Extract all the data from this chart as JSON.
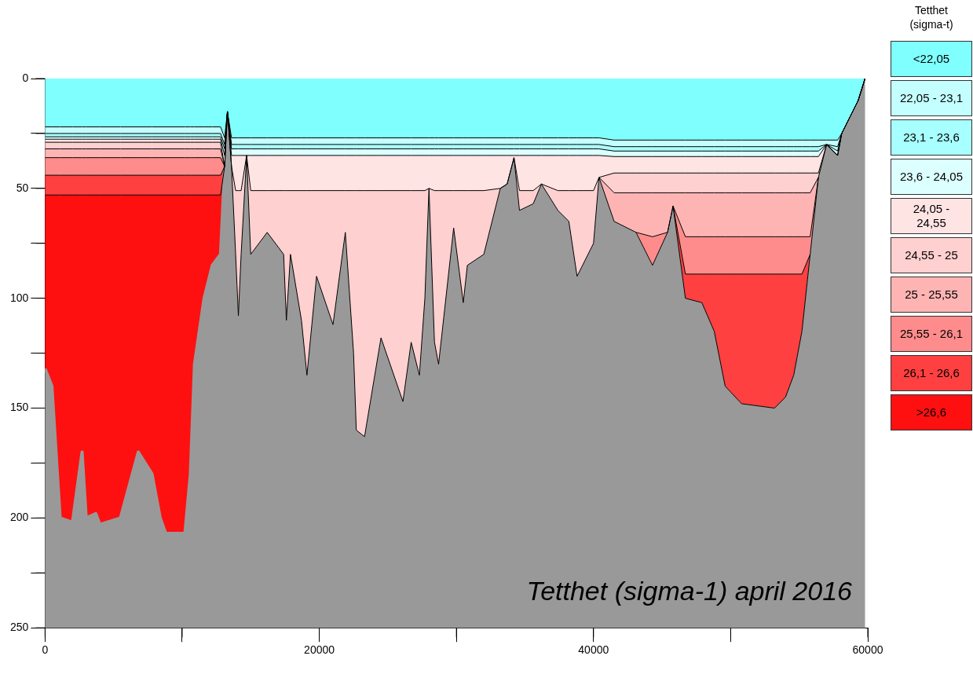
{
  "chart_data": {
    "type": "area",
    "stacked": true,
    "legend_title": "Tetthet (sigma-t)",
    "legend": "right",
    "annotations": [
      "Tetthet (sigma-1) april 2016"
    ],
    "xlim": [
      0,
      60000
    ],
    "xticks": [
      0,
      {
        "value": 10000,
        "label": null
      },
      20000,
      {
        "value": 30000,
        "label": null
      },
      40000,
      {
        "value": 50000,
        "label": null
      },
      60000
    ],
    "ylim": [
      250,
      0
    ],
    "yticks": [
      0,
      {
        "value": 25,
        "label": null
      },
      50,
      {
        "value": 75,
        "label": null
      },
      100,
      {
        "value": 125,
        "label": null
      },
      150,
      {
        "value": 175,
        "label": null
      },
      200,
      {
        "value": 225,
        "label": null
      },
      250
    ],
    "grid": false,
    "x": [
      0,
      500,
      1100,
      2000,
      2700,
      3000,
      3700,
      4000,
      5500,
      6800,
      7800,
      8400,
      8800,
      10200,
      10600,
      10900,
      11600,
      12200,
      12800,
      13100,
      13300,
      13600,
      13900,
      14100,
      14300,
      14700,
      15000,
      16200,
      17400,
      17600,
      17900,
      18700,
      19100,
      19800,
      21000,
      21900,
      22500,
      22700,
      23300,
      24500,
      26100,
      26700,
      27300,
      27700,
      28000,
      28400,
      28700,
      29800,
      30500,
      30800,
      32000,
      33200,
      33700,
      34200,
      34600,
      35600,
      36200,
      37400,
      38200,
      38800,
      40000,
      40400,
      41500,
      43100,
      44300,
      45400,
      45800,
      46700,
      47900,
      48800,
      49600,
      50800,
      53200,
      54000,
      54600,
      55200,
      55800,
      56400,
      57000,
      57800,
      58100,
      59300,
      59800
    ],
    "series": [
      {
        "name": "<22,05",
        "color": "#80ffff",
        "values": [
          22,
          22,
          22,
          22,
          22,
          22,
          22,
          22,
          22,
          22,
          22,
          22,
          22,
          22,
          22,
          22,
          22,
          22,
          22,
          27,
          15,
          27,
          27,
          27,
          27,
          27,
          27,
          27,
          27,
          27,
          27,
          27,
          27,
          27,
          27,
          27,
          27,
          27,
          27,
          27,
          27,
          27,
          27,
          27,
          27,
          27,
          27,
          27,
          27,
          27,
          27,
          27,
          27,
          27,
          27,
          27,
          27,
          27,
          27,
          27,
          27,
          27,
          28,
          28,
          28,
          28,
          28,
          28,
          28,
          28,
          28,
          28,
          28,
          28,
          28,
          28,
          28,
          28,
          28,
          28,
          25,
          10,
          0
        ]
      },
      {
        "name": "22,05 - 23,1",
        "color": "#c4ffff",
        "values": [
          3,
          3,
          3,
          3,
          3,
          3,
          3,
          3,
          3,
          3,
          3,
          3,
          3,
          3,
          3,
          3,
          3,
          3,
          3,
          3,
          0,
          3,
          3,
          3,
          3,
          3,
          3,
          3,
          3,
          3,
          3,
          3,
          3,
          3,
          3,
          3,
          3,
          3,
          3,
          3,
          3,
          3,
          3,
          3,
          3,
          3,
          3,
          3,
          3,
          3,
          3,
          3,
          3,
          3,
          3,
          3,
          3,
          3,
          3,
          3,
          3,
          3,
          3,
          3,
          3,
          3,
          3,
          3,
          3,
          3,
          3,
          3,
          3,
          3,
          3,
          3,
          3,
          3,
          2,
          3,
          0,
          0,
          0
        ]
      },
      {
        "name": "23,1 - 23,6",
        "color": "#a8ffff",
        "values": [
          1.5,
          1.5,
          1.5,
          1.5,
          1.5,
          1.5,
          1.5,
          1.5,
          1.5,
          1.5,
          1.5,
          1.5,
          1.5,
          1.5,
          1.5,
          1.5,
          1.5,
          1.5,
          1.5,
          2,
          0,
          2,
          2,
          2,
          2,
          2,
          2,
          2,
          2,
          2,
          2,
          2,
          2,
          2,
          2,
          2,
          2,
          2,
          2,
          2,
          2,
          2,
          2,
          2,
          2,
          2,
          2,
          2,
          2,
          2,
          2,
          2,
          2,
          2,
          2,
          2,
          2,
          2,
          2,
          2,
          2,
          2,
          2,
          2,
          2,
          2,
          2,
          2,
          2,
          2,
          2,
          2,
          2,
          2,
          2,
          2,
          2,
          2,
          0,
          2,
          0,
          0,
          0
        ]
      },
      {
        "name": "23,6 - 24,05",
        "color": "#dcffff",
        "values": [
          1.1,
          1.1,
          1.1,
          1.1,
          1.1,
          1.1,
          1.1,
          1.1,
          1.1,
          1.1,
          1.1,
          1.1,
          1.1,
          1.1,
          1.1,
          1.1,
          1.1,
          1.1,
          1.1,
          3,
          0,
          3,
          3,
          3,
          3,
          3,
          3,
          3,
          3,
          3,
          3,
          3,
          3,
          3,
          3,
          3,
          3,
          3,
          3,
          3,
          3,
          3,
          3,
          3,
          3,
          3,
          3,
          3,
          3,
          3,
          3,
          3,
          3,
          3,
          3,
          3,
          3,
          3,
          3,
          3,
          3,
          3,
          2.5,
          2.5,
          2.5,
          2.5,
          2.5,
          2.5,
          2.5,
          2.5,
          2.5,
          2.5,
          2.5,
          2.5,
          2.5,
          2.5,
          2.5,
          2.5,
          0,
          2,
          0,
          0,
          0
        ]
      },
      {
        "name": "24,05 - 24,55",
        "color": "#ffe4e4",
        "values": [
          1.4,
          1.4,
          1.4,
          1.4,
          1.4,
          1.4,
          1.4,
          1.4,
          1.4,
          1.4,
          1.4,
          1.4,
          1.4,
          1.4,
          1.4,
          1.4,
          1.4,
          1.4,
          1.4,
          5,
          0,
          5,
          16,
          16,
          16,
          0,
          16,
          16,
          16,
          16,
          16,
          16,
          16,
          16,
          16,
          16,
          16,
          16,
          16,
          16,
          16,
          16,
          16,
          16,
          15,
          16,
          16,
          16,
          16,
          16,
          16,
          15,
          13,
          1,
          16,
          16,
          13,
          16,
          16,
          16,
          16,
          10,
          7.5,
          7.5,
          7.5,
          7.5,
          7.5,
          7.5,
          7.5,
          7.5,
          7.5,
          7.5,
          7.5,
          7.5,
          7.5,
          7.5,
          7.5,
          7.5,
          0,
          0,
          0,
          0,
          0
        ]
      },
      {
        "name": "24,55 - 25",
        "color": "#ffd0d0",
        "values": [
          3,
          3,
          3,
          3,
          3,
          3,
          3,
          3,
          3,
          3,
          3,
          3,
          3,
          3,
          3,
          3,
          3,
          3,
          3,
          0,
          0,
          0,
          29,
          57,
          29,
          0,
          29,
          19,
          29,
          59,
          29,
          59,
          84,
          39,
          61,
          19,
          74,
          109,
          112,
          67,
          96,
          69,
          84,
          49,
          0,
          69,
          79,
          17,
          51,
          34,
          29,
          0,
          0,
          0,
          9,
          6,
          0,
          9,
          14,
          39,
          24,
          0,
          9,
          9,
          9,
          9,
          9,
          9,
          9,
          9,
          9,
          9,
          9,
          9,
          9,
          9,
          9,
          2,
          0,
          0,
          0,
          0,
          0
        ]
      },
      {
        "name": "25 - 25,55",
        "color": "#ffb4b4",
        "values": [
          4,
          4,
          4,
          4,
          4,
          4,
          4,
          4,
          4,
          4,
          4,
          4,
          4,
          4,
          4,
          4,
          4,
          4,
          4,
          0,
          null,
          null,
          null,
          null,
          null,
          null,
          null,
          null,
          null,
          null,
          null,
          null,
          null,
          null,
          null,
          null,
          null,
          null,
          null,
          null,
          null,
          null,
          null,
          null,
          null,
          null,
          null,
          null,
          null,
          null,
          null,
          null,
          null,
          null,
          null,
          null,
          null,
          null,
          null,
          null,
          null,
          0,
          13,
          18,
          20,
          18,
          6,
          20,
          20,
          20,
          20,
          20,
          20,
          20,
          20,
          20,
          20,
          0,
          null,
          null,
          null,
          null,
          null
        ]
      },
      {
        "name": "25,55 - 26,1",
        "color": "#ff8c8c",
        "values": [
          8,
          8,
          8,
          8,
          8,
          8,
          8,
          8,
          8,
          8,
          8,
          8,
          8,
          8,
          8,
          8,
          8,
          8,
          8,
          0,
          null,
          null,
          null,
          null,
          null,
          null,
          null,
          null,
          null,
          null,
          null,
          null,
          null,
          null,
          null,
          null,
          null,
          null,
          null,
          null,
          null,
          null,
          null,
          null,
          null,
          null,
          null,
          null,
          null,
          null,
          null,
          null,
          null,
          null,
          null,
          null,
          null,
          null,
          null,
          null,
          null,
          null,
          null,
          0,
          13,
          0,
          0,
          17,
          17,
          17,
          17,
          17,
          17,
          17,
          17,
          17,
          8,
          0,
          null,
          null,
          null,
          null,
          null
        ]
      },
      {
        "name": "26,1 - 26,6",
        "color": "#ff4040",
        "values": [
          9,
          9,
          9,
          9,
          9,
          9,
          9,
          9,
          9,
          9,
          9,
          9,
          9,
          9,
          9,
          9,
          9,
          9,
          9,
          0,
          null,
          null,
          null,
          null,
          null,
          null,
          null,
          null,
          null,
          null,
          null,
          null,
          null,
          null,
          null,
          null,
          null,
          null,
          null,
          null,
          null,
          null,
          null,
          null,
          null,
          null,
          null,
          null,
          null,
          null,
          null,
          null,
          null,
          null,
          null,
          null,
          null,
          null,
          null,
          null,
          null,
          null,
          null,
          null,
          null,
          null,
          0,
          11,
          13,
          26,
          51,
          59,
          61,
          56,
          46,
          26,
          0,
          null,
          null,
          null,
          null,
          null,
          null
        ]
      },
      {
        "name": ">26,6",
        "color": "#ff1010",
        "values": [
          79,
          87,
          147,
          149,
          117,
          147,
          145,
          150,
          147,
          117,
          127,
          147,
          154,
          154,
          127,
          77,
          47,
          32,
          27,
          0,
          null,
          null,
          null,
          null,
          null,
          null,
          null,
          null,
          null,
          null,
          null,
          null,
          null,
          null,
          null,
          null,
          null,
          null,
          null,
          null,
          null,
          null,
          null,
          null,
          null,
          null,
          null,
          null,
          null,
          null,
          null,
          null,
          null,
          null,
          null,
          null,
          null,
          null,
          null,
          null,
          null,
          null,
          null,
          null,
          null,
          null,
          null,
          null,
          null,
          null,
          null,
          null,
          null,
          null,
          null,
          null,
          null,
          null,
          null,
          null,
          null,
          null,
          null
        ]
      },
      {
        "color": "#999999",
        "values": [
          118,
          110,
          50,
          48,
          80,
          50,
          52,
          47,
          50,
          80,
          70,
          50,
          43,
          43,
          70,
          120,
          150,
          165,
          170,
          210,
          235,
          210,
          170,
          142,
          170,
          215,
          170,
          180,
          170,
          140,
          170,
          140,
          115,
          160,
          138,
          180,
          125,
          90,
          87,
          132,
          103,
          130,
          115,
          150,
          200,
          130,
          120,
          182,
          148,
          165,
          170,
          200,
          202,
          214,
          190,
          193,
          202,
          190,
          185,
          160,
          175,
          205,
          185,
          180,
          165,
          180,
          192,
          150,
          148,
          135,
          110,
          102,
          100,
          105,
          115,
          135,
          170,
          205,
          220,
          215,
          225,
          240,
          250
        ]
      }
    ]
  }
}
